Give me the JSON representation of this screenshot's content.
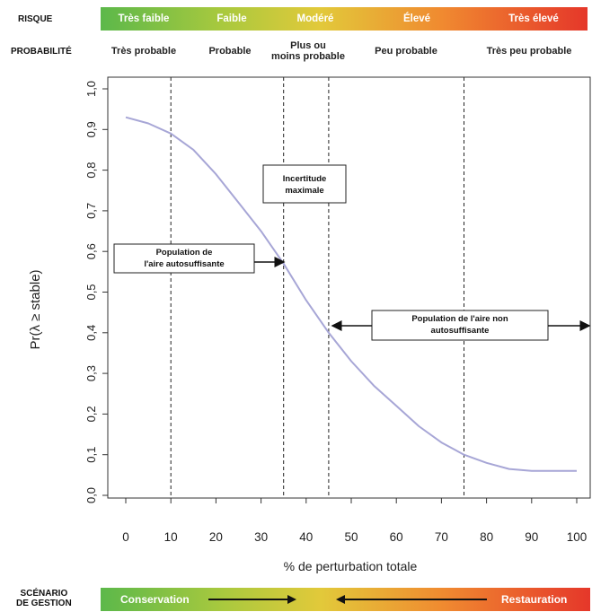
{
  "risk_row": {
    "label": "RISQUE",
    "levels": [
      "Très faible",
      "Faible",
      "Modéré",
      "Élevé",
      "Très élevé"
    ]
  },
  "probability_row": {
    "label": "PROBABILITÉ",
    "levels": [
      "Très probable",
      "Probable",
      "Plus ou\nmoins probable",
      "Peu probable",
      "Très peu probable"
    ]
  },
  "management_row": {
    "label_line1": "SCÉNARIO",
    "label_line2": "DE GESTION",
    "left": "Conservation",
    "right": "Restauration"
  },
  "colors": {
    "curve": "#a7a6d6",
    "gradient_start": "#5cb84a",
    "gradient_end": "#e5372a"
  },
  "chart_data": {
    "type": "line",
    "title": "",
    "xlabel": "% de perturbation totale",
    "ylabel": "Pr(λ ≥ stable)",
    "xlim": [
      0,
      100
    ],
    "ylim": [
      0,
      1
    ],
    "x_ticks": [
      0,
      10,
      20,
      30,
      40,
      50,
      60,
      70,
      80,
      90,
      100
    ],
    "y_ticks": [
      "0,0",
      "0,1",
      "0,2",
      "0,3",
      "0,4",
      "0,5",
      "0,6",
      "0,7",
      "0,8",
      "0,9",
      "1,0"
    ],
    "grid": false,
    "reference_lines_x": [
      10,
      35,
      45,
      75
    ],
    "series": [
      {
        "x": [
          0,
          5,
          10,
          15,
          20,
          25,
          30,
          35,
          40,
          45,
          50,
          55,
          60,
          65,
          70,
          75,
          80,
          85,
          90,
          95,
          100
        ],
        "y": [
          0.93,
          0.915,
          0.89,
          0.85,
          0.79,
          0.72,
          0.65,
          0.57,
          0.48,
          0.4,
          0.33,
          0.27,
          0.22,
          0.17,
          0.13,
          0.1,
          0.08,
          0.065,
          0.06,
          0.06,
          0.06
        ]
      }
    ],
    "annotations": {
      "max_uncertainty": [
        "Incertitude",
        "maximale"
      ],
      "self_sustaining": [
        "Population de",
        "l'aire autosuffisante"
      ],
      "not_self_sustaining": [
        "Population de l'aire non",
        "autosuffisante"
      ]
    }
  }
}
